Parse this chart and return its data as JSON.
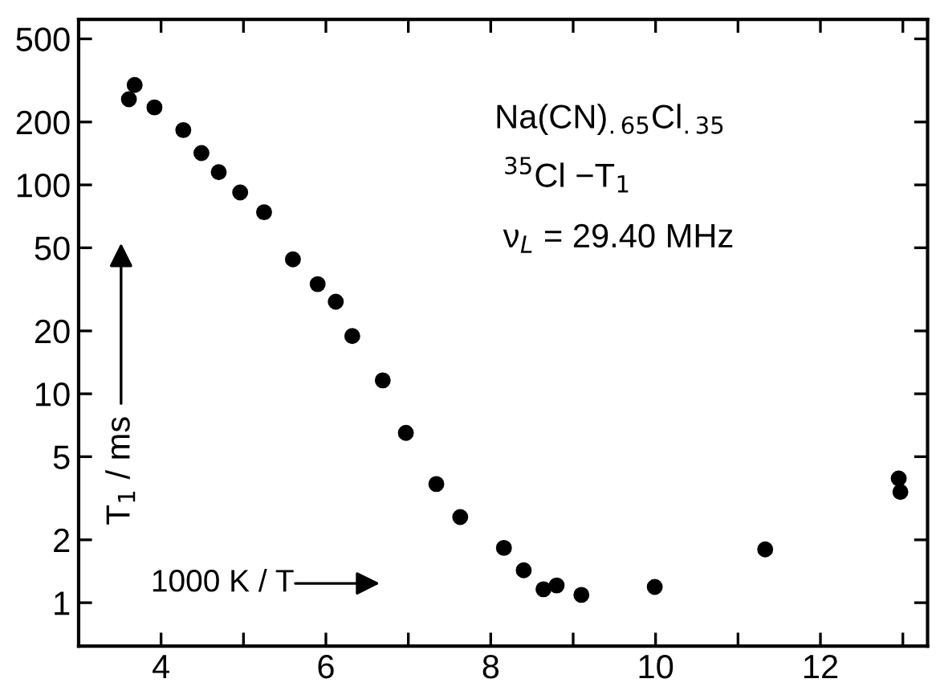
{
  "chart_data": {
    "type": "scatter",
    "xlabel": "1000 K / T",
    "ylabel": "T$_{1}$ / ms",
    "annotations": [
      "Na(CN)$_{.65}$Cl$_{.35}$",
      "$^{35}$Cl −T$_{1}$",
      "ν$_{L}$ = 29.40 MHz"
    ],
    "x": [
      3.61,
      3.68,
      3.92,
      4.27,
      4.49,
      4.7,
      4.96,
      5.25,
      5.6,
      5.9,
      6.12,
      6.32,
      6.69,
      6.97,
      7.34,
      7.63,
      8.16,
      8.4,
      8.64,
      8.8,
      9.1,
      9.99,
      11.33,
      12.95,
      12.97
    ],
    "series": [
      {
        "color": "#000000",
        "values": [
          257,
          301,
          235,
          183,
          142,
          115,
          92,
          74,
          44,
          33.5,
          27.6,
          18.9,
          11.6,
          6.5,
          3.7,
          2.57,
          1.83,
          1.43,
          1.16,
          1.21,
          1.09,
          1.19,
          1.8,
          3.93,
          3.39
        ]
      }
    ],
    "log": "y",
    "xlim": [
      3,
      13.3
    ],
    "ylim": [
      0.62,
      620
    ],
    "xticks": [
      4,
      {
        "value": 5,
        "label": null
      },
      6,
      {
        "value": 7,
        "label": null
      },
      8,
      {
        "value": 9,
        "label": null
      },
      10,
      {
        "value": 11,
        "label": null
      },
      12,
      {
        "value": 13,
        "label": null
      }
    ],
    "yticks": [
      1,
      2,
      5,
      10,
      20,
      50,
      100,
      200,
      500
    ],
    "marker": "circle",
    "grid": false,
    "legend": false
  }
}
